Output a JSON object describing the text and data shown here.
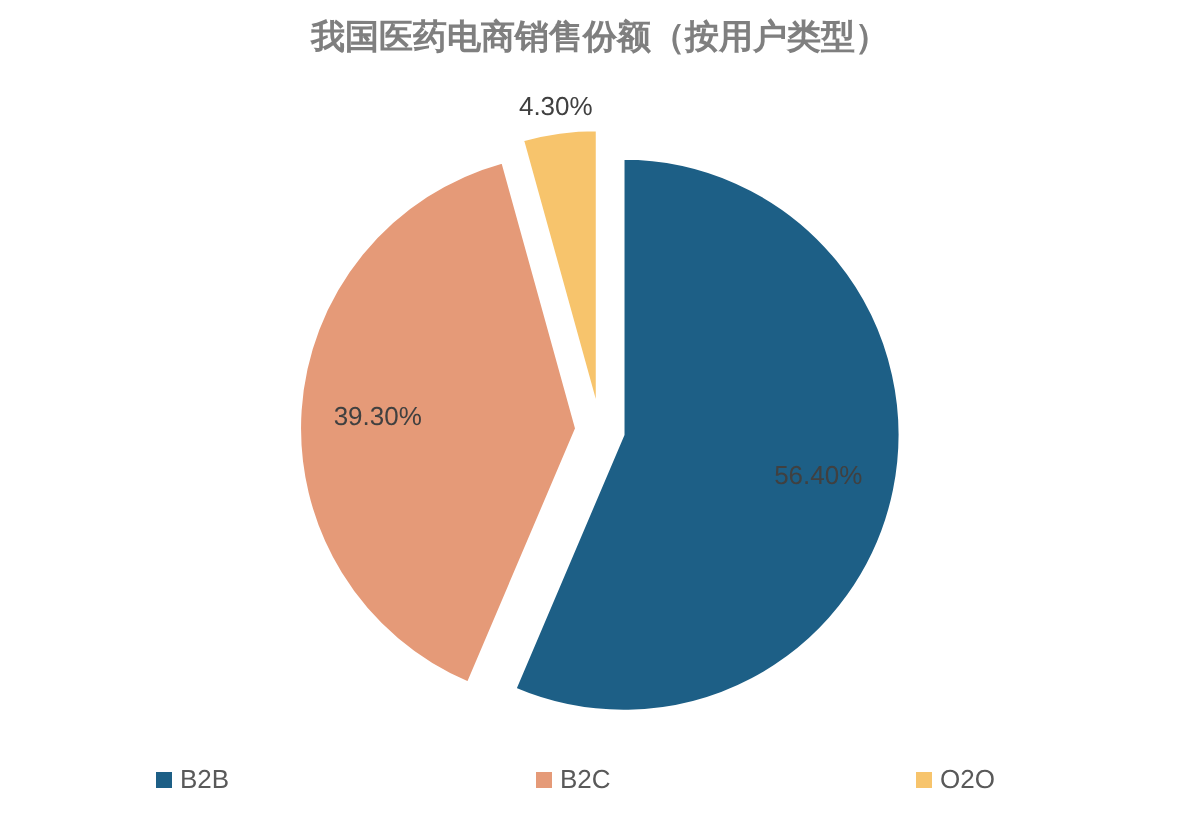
{
  "chart_data": {
    "type": "pie",
    "title": "我国医药电商销售份额（按用户类型）",
    "categories": [
      "B2B",
      "B2C",
      "O2O"
    ],
    "values": [
      56.4,
      39.3,
      4.3
    ],
    "colors": [
      "#1d5f86",
      "#e59a78",
      "#f7c46c"
    ],
    "value_labels": [
      "56.40%",
      "39.30%",
      "4.30%"
    ],
    "legend": "bottom"
  }
}
